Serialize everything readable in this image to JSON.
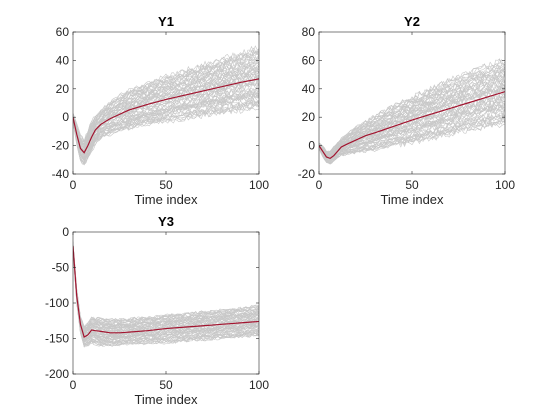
{
  "figure": {
    "background": "#ffffff"
  },
  "chart_data": [
    {
      "type": "line",
      "title": "Y1",
      "xlabel": "Time index",
      "ylabel": "",
      "xlim": [
        0,
        100
      ],
      "ylim": [
        -40,
        60
      ],
      "xticks": [
        0,
        50,
        100
      ],
      "yticks": [
        -40,
        -20,
        0,
        20,
        40,
        60
      ],
      "grid": false,
      "legend": "none",
      "series_colors": {
        "samples": "#c8c8c8",
        "mean": "#a2142f"
      },
      "mean_series": {
        "name": "mean",
        "x": [
          0,
          2,
          4,
          6,
          8,
          10,
          12,
          15,
          20,
          25,
          30,
          40,
          50,
          60,
          70,
          80,
          90,
          100
        ],
        "y": [
          0,
          -12,
          -22,
          -25,
          -20,
          -14,
          -9,
          -5,
          -1,
          2,
          5,
          9,
          12.5,
          15.5,
          18.5,
          21.5,
          24.5,
          27
        ]
      },
      "band": {
        "x": [
          0,
          2,
          4,
          6,
          8,
          10,
          12,
          15,
          20,
          25,
          30,
          40,
          50,
          60,
          70,
          80,
          90,
          100
        ],
        "lower": [
          -3,
          -19,
          -31,
          -34,
          -29,
          -24,
          -19,
          -15,
          -12,
          -10,
          -8,
          -5,
          -3,
          -1,
          1,
          3,
          5,
          6
        ],
        "upper": [
          3,
          -5,
          -13,
          -16,
          -10,
          -3,
          1,
          5,
          11,
          15,
          19,
          24,
          29,
          33,
          37,
          41,
          45,
          49
        ]
      }
    },
    {
      "type": "line",
      "title": "Y2",
      "xlabel": "Time index",
      "ylabel": "",
      "xlim": [
        0,
        100
      ],
      "ylim": [
        -20,
        80
      ],
      "xticks": [
        0,
        50,
        100
      ],
      "yticks": [
        -20,
        0,
        20,
        40,
        60,
        80
      ],
      "grid": false,
      "legend": "none",
      "series_colors": {
        "samples": "#c8c8c8",
        "mean": "#a2142f"
      },
      "mean_series": {
        "name": "mean",
        "x": [
          0,
          2,
          4,
          6,
          8,
          10,
          12,
          15,
          20,
          25,
          30,
          40,
          50,
          60,
          70,
          80,
          90,
          100
        ],
        "y": [
          0,
          -4,
          -8,
          -9,
          -7,
          -4,
          -1,
          1,
          4,
          7,
          9,
          13.5,
          18,
          22,
          26,
          30,
          34,
          38
        ]
      },
      "band": {
        "x": [
          0,
          2,
          4,
          6,
          8,
          10,
          12,
          15,
          20,
          25,
          30,
          40,
          50,
          60,
          70,
          80,
          90,
          100
        ],
        "lower": [
          -2,
          -8,
          -12,
          -13,
          -11,
          -9,
          -7,
          -6,
          -5,
          -4,
          -3,
          0,
          2,
          5,
          8,
          11,
          13,
          15
        ],
        "upper": [
          2,
          0,
          -4,
          -4,
          -1,
          2,
          5,
          8,
          13,
          17,
          21,
          28,
          34,
          40,
          46,
          51,
          56,
          60
        ]
      }
    },
    {
      "type": "line",
      "title": "Y3",
      "xlabel": "Time index",
      "ylabel": "",
      "xlim": [
        0,
        100
      ],
      "ylim": [
        -200,
        0
      ],
      "xticks": [
        0,
        50,
        100
      ],
      "yticks": [
        -200,
        -150,
        -100,
        -50,
        0
      ],
      "grid": false,
      "legend": "none",
      "series_colors": {
        "samples": "#c8c8c8",
        "mean": "#a2142f"
      },
      "mean_series": {
        "name": "mean",
        "x": [
          0,
          2,
          4,
          6,
          8,
          10,
          12,
          15,
          20,
          25,
          30,
          40,
          50,
          60,
          70,
          80,
          90,
          100
        ],
        "y": [
          -20,
          -90,
          -130,
          -148,
          -145,
          -138,
          -139,
          -140,
          -142,
          -142,
          -141,
          -139,
          -136,
          -134,
          -132,
          -130,
          -128,
          -126
        ]
      },
      "band": {
        "x": [
          0,
          2,
          4,
          6,
          8,
          10,
          12,
          15,
          20,
          25,
          30,
          40,
          50,
          60,
          70,
          80,
          90,
          100
        ],
        "lower": [
          -26,
          -100,
          -142,
          -162,
          -160,
          -156,
          -158,
          -160,
          -160,
          -159,
          -158,
          -157,
          -156,
          -154,
          -152,
          -150,
          -148,
          -146
        ],
        "upper": [
          -14,
          -80,
          -118,
          -133,
          -128,
          -121,
          -121,
          -122,
          -123,
          -123,
          -122,
          -120,
          -117,
          -115,
          -112,
          -110,
          -107,
          -104
        ]
      }
    }
  ]
}
